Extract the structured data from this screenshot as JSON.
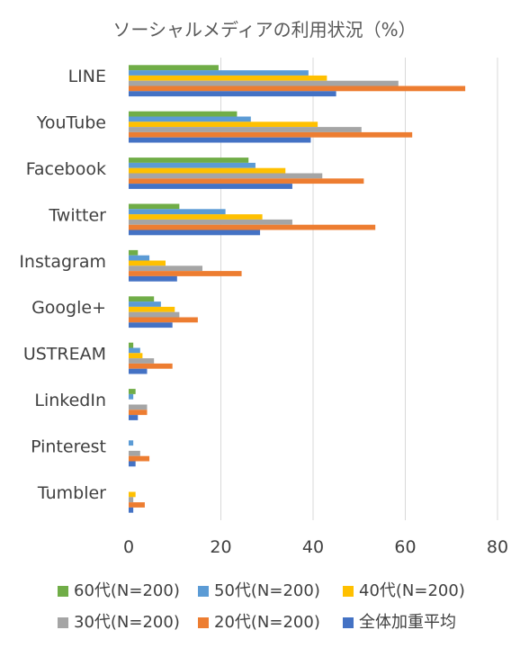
{
  "chart_data": {
    "type": "bar",
    "orientation": "horizontal",
    "title": "ソーシャルメディアの利用状況（%）",
    "categories": [
      "LINE",
      "YouTube",
      "Facebook",
      "Twitter",
      "Instagram",
      "Google+",
      "USTREAM",
      "LinkedIn",
      "Pinterest",
      "Tumbler"
    ],
    "series": [
      {
        "name": "60代(N=200)",
        "color": "#70ad47",
        "values": [
          19.5,
          23.5,
          26,
          11,
          2,
          5.5,
          1,
          1.5,
          0,
          0
        ]
      },
      {
        "name": "50代(N=200)",
        "color": "#5b9bd5",
        "values": [
          39,
          26.5,
          27.5,
          21,
          4.5,
          7,
          2.5,
          1,
          1,
          0
        ]
      },
      {
        "name": "40代(N=200)",
        "color": "#ffc000",
        "values": [
          43,
          41,
          34,
          29,
          8,
          10,
          3,
          0,
          0,
          1.5
        ]
      },
      {
        "name": "30代(N=200)",
        "color": "#a5a5a5",
        "values": [
          58.5,
          50.5,
          42,
          35.5,
          16,
          11,
          5.5,
          4,
          2.5,
          1
        ]
      },
      {
        "name": "20代(N=200)",
        "color": "#ed7d31",
        "values": [
          73,
          61.5,
          51,
          53.5,
          24.5,
          15,
          9.5,
          4,
          4.5,
          3.5
        ]
      },
      {
        "name": "全体加重平均",
        "color": "#4472c4",
        "values": [
          45,
          39.5,
          35.5,
          28.5,
          10.5,
          9.5,
          4,
          2,
          1.5,
          1
        ]
      }
    ],
    "xlim": [
      0,
      80
    ],
    "x_ticks": [
      0,
      20,
      40,
      60,
      80
    ],
    "grid": true,
    "legend_position": "bottom",
    "legend_order": [
      0,
      1,
      2,
      3,
      4,
      5
    ]
  }
}
